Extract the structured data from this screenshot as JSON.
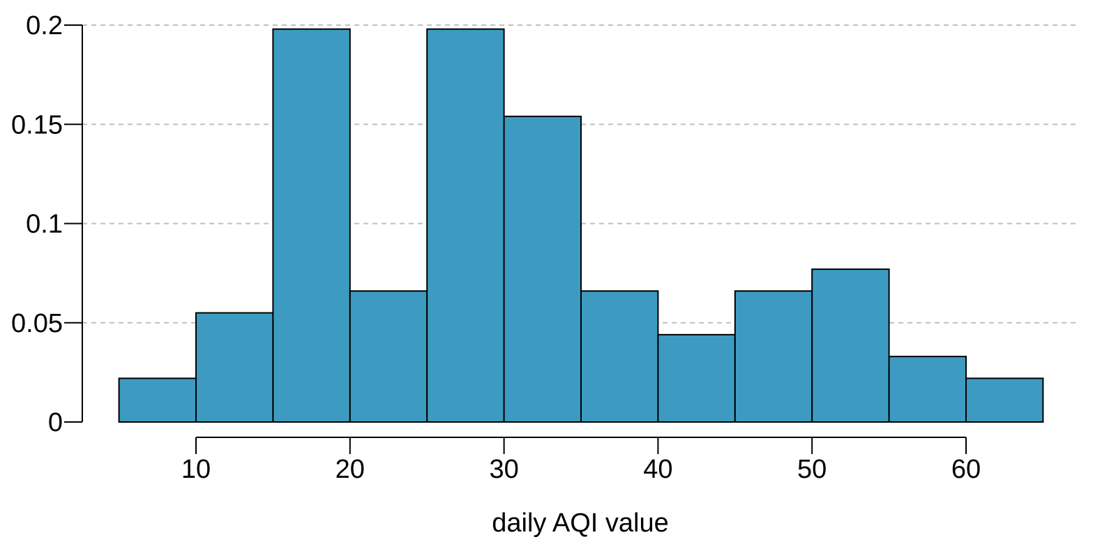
{
  "chart_data": {
    "type": "bar",
    "title": "",
    "xlabel": "daily AQI value",
    "ylabel": "",
    "bins": [
      {
        "start": 5,
        "end": 10,
        "value": 0.022
      },
      {
        "start": 10,
        "end": 15,
        "value": 0.055
      },
      {
        "start": 15,
        "end": 20,
        "value": 0.198
      },
      {
        "start": 20,
        "end": 25,
        "value": 0.066
      },
      {
        "start": 25,
        "end": 30,
        "value": 0.198
      },
      {
        "start": 30,
        "end": 35,
        "value": 0.154
      },
      {
        "start": 35,
        "end": 40,
        "value": 0.066
      },
      {
        "start": 40,
        "end": 45,
        "value": 0.044
      },
      {
        "start": 45,
        "end": 50,
        "value": 0.066
      },
      {
        "start": 50,
        "end": 55,
        "value": 0.077
      },
      {
        "start": 55,
        "end": 60,
        "value": 0.033
      },
      {
        "start": 60,
        "end": 65,
        "value": 0.022
      }
    ],
    "xticks": [
      10,
      20,
      30,
      40,
      50,
      60
    ],
    "xtick_labels": [
      "10",
      "20",
      "30",
      "40",
      "50",
      "60"
    ],
    "yticks": [
      0,
      0.05,
      0.1,
      0.15,
      0.2
    ],
    "ytick_labels": [
      "0",
      "0.05",
      "0.1",
      "0.15",
      "0.2"
    ],
    "xlim": [
      5,
      65
    ],
    "ylim": [
      0,
      0.2
    ],
    "grid": "horizontal dashed",
    "colors": {
      "bar_fill": "#3d9bc1",
      "bar_stroke": "#000000",
      "grid": "#bfbfbf",
      "axis": "#000000"
    }
  }
}
